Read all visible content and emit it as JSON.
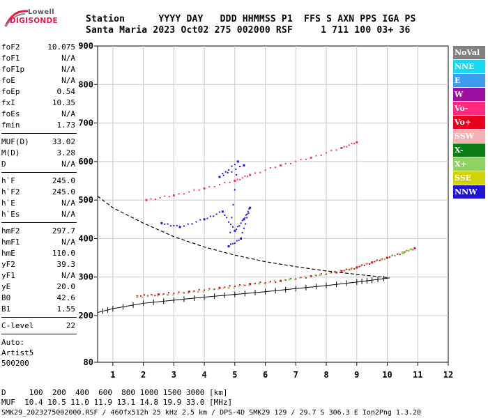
{
  "logo": {
    "line1": "Lowell",
    "line2": "DIGISONDE"
  },
  "header": {
    "row1": "Station      YYYY DAY   DDD HHMMSS P1  FFS S AXN PPS IGA PS",
    "row2": "Santa Maria 2023 Oct02 275 002000 RSF     1 711 100 03+ 36"
  },
  "params_group1": [
    {
      "label": "foF2",
      "value": "10.075"
    },
    {
      "label": "foF1",
      "value": "N/A"
    },
    {
      "label": "foF1p",
      "value": "N/A"
    },
    {
      "label": "foE",
      "value": "N/A"
    },
    {
      "label": "foEp",
      "value": "0.54"
    },
    {
      "label": "fxI",
      "value": "10.35"
    },
    {
      "label": "foEs",
      "value": "N/A"
    },
    {
      "label": "fmin",
      "value": "1.73"
    }
  ],
  "params_group2": [
    {
      "label": "MUF(D)",
      "value": "33.02"
    },
    {
      "label": "M(D)",
      "value": "3.28"
    },
    {
      "label": "D",
      "value": "N/A"
    }
  ],
  "params_group3": [
    {
      "label": "h`F",
      "value": "245.0"
    },
    {
      "label": "h`F2",
      "value": "245.0"
    },
    {
      "label": "h`E",
      "value": "N/A"
    },
    {
      "label": "h`Es",
      "value": "N/A"
    }
  ],
  "params_group4": [
    {
      "label": "hmF2",
      "value": "297.7"
    },
    {
      "label": "hmF1",
      "value": "N/A"
    },
    {
      "label": "hmE",
      "value": "110.0"
    },
    {
      "label": "yF2",
      "value": "39.3"
    },
    {
      "label": "yF1",
      "value": "N/A"
    },
    {
      "label": "yE",
      "value": "20.0"
    },
    {
      "label": "B0",
      "value": "42.6"
    },
    {
      "label": "B1",
      "value": "1.55"
    }
  ],
  "params_group5": [
    {
      "label": "C-level",
      "value": "22"
    }
  ],
  "auto": {
    "line1": "Auto:",
    "line2": "Artist5",
    "line3": "500200"
  },
  "legend": [
    {
      "label": "NoVal",
      "color": "#808080"
    },
    {
      "label": "NNE",
      "color": "#19d7f0"
    },
    {
      "label": "E",
      "color": "#3c9bf0"
    },
    {
      "label": "W",
      "color": "#9b10a0"
    },
    {
      "label": "Vo-",
      "color": "#ff2a7a"
    },
    {
      "label": "Vo+",
      "color": "#e6001e"
    },
    {
      "label": "SSW",
      "color": "#f7b0b4"
    },
    {
      "label": "X-",
      "color": "#0b7d14"
    },
    {
      "label": "X+",
      "color": "#90d262"
    },
    {
      "label": "SSE",
      "color": "#d2d20a"
    },
    {
      "label": "NNW",
      "color": "#1e14d2"
    }
  ],
  "bottom": {
    "line1": "D     100  200  400  600  800 1000 1500 3000 [km]",
    "line2": "MUF  10.4 10.5 11.0 11.9 13.1 14.8 19.9 33.0 [MHz]",
    "line3": "SMK29_2023275002000.RSF / 460fx512h 25 kHz 2.5 km / DPS-4D SMK29 129 / 29.7 S 306.3 E Ion2Png 1.3.20"
  },
  "chart_data": {
    "type": "scatter",
    "xlabel": "",
    "ylabel": "",
    "xlim": [
      0.5,
      12
    ],
    "ylim": [
      80,
      900
    ],
    "xticks": [
      1,
      2,
      3,
      4,
      5,
      6,
      7,
      8,
      9,
      10,
      11,
      12
    ],
    "yticks": [
      80,
      200,
      300,
      400,
      500,
      600,
      700,
      800,
      900
    ],
    "grid": true,
    "series": [
      {
        "name": "Vo+",
        "color": "#e6001e",
        "points": [
          [
            1.8,
            250
          ],
          [
            2.5,
            255
          ],
          [
            3.5,
            262
          ],
          [
            4.5,
            272
          ],
          [
            5.5,
            282
          ],
          [
            6.5,
            290
          ],
          [
            7.5,
            302
          ],
          [
            8.5,
            315
          ],
          [
            9.0,
            325
          ],
          [
            9.5,
            338
          ],
          [
            10.0,
            350
          ],
          [
            10.5,
            363
          ],
          [
            10.9,
            375
          ]
        ]
      },
      {
        "name": "X+",
        "color": "#90d262",
        "points": [
          [
            1.8,
            248
          ],
          [
            2.8,
            254
          ],
          [
            3.8,
            262
          ],
          [
            4.8,
            272
          ],
          [
            5.8,
            283
          ],
          [
            6.8,
            294
          ],
          [
            7.8,
            306
          ],
          [
            8.8,
            320
          ],
          [
            9.8,
            345
          ],
          [
            10.5,
            362
          ],
          [
            10.8,
            372
          ]
        ]
      },
      {
        "name": "Vo-",
        "color": "#ff2a7a",
        "points": [
          [
            2.1,
            500
          ],
          [
            3.0,
            512
          ],
          [
            4.0,
            530
          ],
          [
            5.0,
            550
          ],
          [
            5.5,
            565
          ],
          [
            6.5,
            590
          ],
          [
            7.5,
            610
          ],
          [
            8.5,
            635
          ],
          [
            9.0,
            650
          ]
        ]
      },
      {
        "name": "NNW",
        "color": "#1e14d2",
        "points": [
          [
            2.6,
            440
          ],
          [
            3.2,
            430
          ],
          [
            4.0,
            450
          ],
          [
            4.6,
            470
          ],
          [
            5.0,
            420
          ],
          [
            5.3,
            450
          ],
          [
            5.5,
            480
          ],
          [
            5.2,
            400
          ],
          [
            4.8,
            380
          ],
          [
            5.1,
            600
          ],
          [
            4.5,
            560
          ],
          [
            5.3,
            590
          ]
        ]
      }
    ],
    "profile_curve": {
      "name": "profile",
      "points": [
        [
          0.5,
          510
        ],
        [
          1.0,
          480
        ],
        [
          2.0,
          440
        ],
        [
          3.0,
          405
        ],
        [
          4.0,
          378
        ],
        [
          5.0,
          357
        ],
        [
          6.0,
          340
        ],
        [
          7.0,
          327
        ],
        [
          8.0,
          316
        ],
        [
          9.0,
          307
        ],
        [
          9.5,
          303
        ],
        [
          10.075,
          298
        ]
      ]
    },
    "virtual_height_curve": {
      "name": "h'F",
      "points": [
        [
          0.5,
          208
        ],
        [
          1.0,
          218
        ],
        [
          2.0,
          232
        ],
        [
          3.0,
          240
        ],
        [
          4.0,
          248
        ],
        [
          5.0,
          255
        ],
        [
          6.0,
          262
        ],
        [
          7.0,
          270
        ],
        [
          8.0,
          278
        ],
        [
          9.0,
          287
        ],
        [
          9.5,
          292
        ],
        [
          10.075,
          298
        ]
      ]
    }
  }
}
